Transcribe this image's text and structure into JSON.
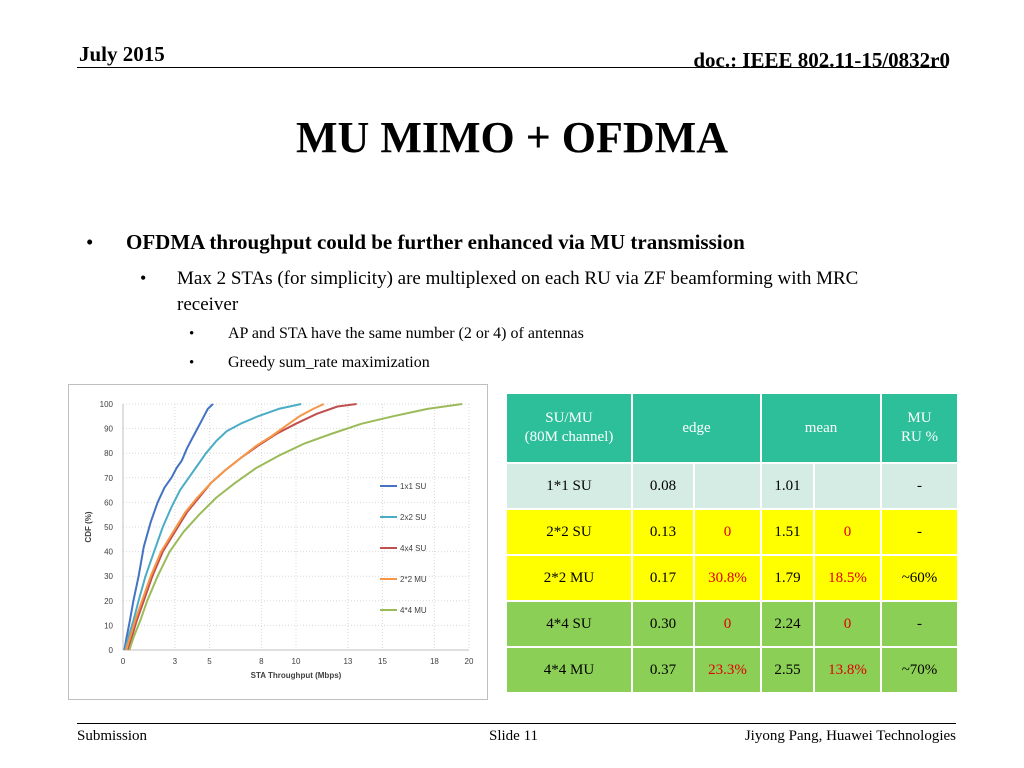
{
  "header": {
    "date": "July 2015",
    "doc": "doc.: IEEE 802.11-15/0832r0"
  },
  "title": "MU MIMO + OFDMA",
  "bullets": {
    "l1": "OFDMA throughput could be further enhanced via MU transmission",
    "l2": "Max 2 STAs (for simplicity) are multiplexed on each RU via ZF beamforming with MRC receiver",
    "l3a": "AP and STA have the same number (2 or 4) of antennas",
    "l3b": "Greedy sum_rate maximization",
    "marker_1": "•",
    "marker_2": "•",
    "marker_3": "•"
  },
  "chart_data": {
    "type": "line",
    "title": "",
    "xlabel": "STA Throughput (Mbps)",
    "ylabel": "CDF (%)",
    "xlim": [
      0,
      20
    ],
    "ylim": [
      0,
      100
    ],
    "xticks": [
      0,
      3,
      5,
      8,
      10,
      13,
      15,
      18,
      20
    ],
    "yticks": [
      0,
      10,
      20,
      30,
      40,
      50,
      60,
      70,
      80,
      90,
      100
    ],
    "grid": "dotted",
    "legend_position": "right",
    "series": [
      {
        "name": "1x1 SU",
        "color": "#4472c4",
        "x": [
          0.08,
          0.2,
          0.4,
          0.6,
          0.9,
          1.2,
          1.6,
          2.0,
          2.4,
          2.8,
          3.1,
          3.4,
          3.7,
          4.0,
          4.3,
          4.6,
          4.9,
          5.2
        ],
        "y": [
          0,
          5,
          12,
          20,
          30,
          42,
          52,
          60,
          66,
          70,
          74,
          77,
          82,
          86,
          90,
          94,
          98,
          100
        ]
      },
      {
        "name": "2x2 SU",
        "color": "#4bacc6",
        "x": [
          0.13,
          0.3,
          0.6,
          0.9,
          1.3,
          1.8,
          2.3,
          2.8,
          3.3,
          3.8,
          4.3,
          4.8,
          5.4,
          6.0,
          6.8,
          7.8,
          9.0,
          10.3
        ],
        "y": [
          0,
          5,
          12,
          20,
          30,
          40,
          50,
          58,
          65,
          70,
          75,
          80,
          85,
          89,
          92,
          95,
          98,
          100
        ]
      },
      {
        "name": "4x4 SU",
        "color": "#c0504d",
        "x": [
          0.3,
          0.5,
          0.8,
          1.2,
          1.7,
          2.3,
          3.0,
          3.7,
          4.4,
          5.1,
          5.9,
          6.8,
          7.8,
          8.9,
          10.0,
          11.2,
          12.4,
          13.5
        ],
        "y": [
          0,
          5,
          12,
          20,
          30,
          40,
          48,
          56,
          62,
          68,
          73,
          78,
          83,
          88,
          92,
          96,
          99,
          100
        ]
      },
      {
        "name": "2*2 MU",
        "color": "#f79646",
        "x": [
          0.17,
          0.4,
          0.7,
          1.1,
          1.6,
          2.2,
          2.9,
          3.6,
          4.3,
          5.1,
          5.9,
          6.8,
          7.7,
          8.6,
          9.4,
          10.2,
          11.0,
          11.6
        ],
        "y": [
          0,
          5,
          12,
          20,
          30,
          40,
          48,
          56,
          62,
          68,
          73,
          78,
          83,
          87,
          91,
          95,
          98,
          100
        ]
      },
      {
        "name": "4*4 MU",
        "color": "#9bbb59",
        "x": [
          0.37,
          0.6,
          1.0,
          1.4,
          2.0,
          2.7,
          3.5,
          4.4,
          5.4,
          6.5,
          7.7,
          9.0,
          10.5,
          12.1,
          13.8,
          15.6,
          17.6,
          19.6
        ],
        "y": [
          0,
          5,
          12,
          20,
          30,
          40,
          48,
          55,
          62,
          68,
          74,
          79,
          84,
          88,
          92,
          95,
          98,
          100
        ]
      }
    ]
  },
  "table": {
    "header": {
      "col1_line1": "SU/MU",
      "col1_line2": "(80M channel)",
      "edge": "edge",
      "mean": "mean",
      "ru_line1": "MU",
      "ru_line2": "RU  %"
    },
    "rows": [
      {
        "label": "1*1 SU",
        "edge": "0.08",
        "edge_gain": "",
        "mean": "1.01",
        "mean_gain": "",
        "ru": "-"
      },
      {
        "label": "2*2 SU",
        "edge": "0.13",
        "edge_gain": "0",
        "mean": "1.51",
        "mean_gain": "0",
        "ru": "-"
      },
      {
        "label": "2*2 MU",
        "edge": "0.17",
        "edge_gain": "30.8%",
        "mean": "1.79",
        "mean_gain": "18.5%",
        "ru": "~60%"
      },
      {
        "label": "4*4 SU",
        "edge": "0.30",
        "edge_gain": "0",
        "mean": "2.24",
        "mean_gain": "0",
        "ru": "-"
      },
      {
        "label": "4*4 MU",
        "edge": "0.37",
        "edge_gain": "23.3%",
        "mean": "2.55",
        "mean_gain": "13.8%",
        "ru": "~70%"
      }
    ]
  },
  "footer": {
    "left": "Submission",
    "center": "Slide 11",
    "right": "Jiyong Pang, Huawei Technologies"
  }
}
